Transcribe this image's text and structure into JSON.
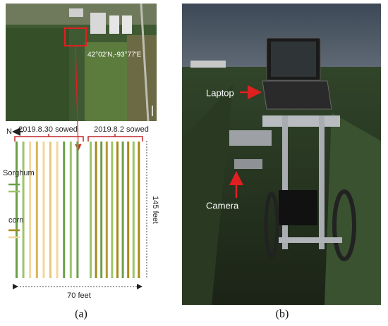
{
  "panel_a": {
    "coordinates": "42°02′N,-93°77′E",
    "north": "N",
    "group_left": "2019.8.30 sowed",
    "group_right": "2019.8.2 sowed",
    "legend": [
      "Sorghum",
      "corn"
    ],
    "length": "145 feet",
    "width": "70 feet",
    "caption": "(a)"
  },
  "panel_b": {
    "labels": [
      "Laptop",
      "Camera"
    ],
    "caption": "(b)"
  }
}
